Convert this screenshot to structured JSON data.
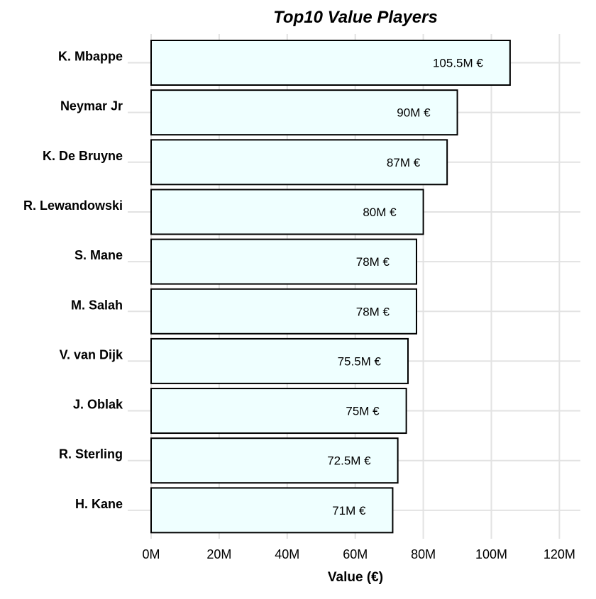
{
  "chart_data": {
    "type": "bar",
    "orientation": "horizontal",
    "title": "Top10 Value Players",
    "xlabel": "Value (€)",
    "ylabel": "",
    "categories": [
      "K. Mbappe",
      "Neymar Jr",
      "K. De Bruyne",
      "R. Lewandowski",
      "S. Mane",
      "M. Salah",
      "V. van Dijk",
      "J. Oblak",
      "R. Sterling",
      "H. Kane"
    ],
    "values": [
      105.5,
      90,
      87,
      80,
      78,
      78,
      75.5,
      75,
      72.5,
      71
    ],
    "value_unit": "M €",
    "data_labels": [
      "105.5M €",
      "90M €",
      "87M €",
      "80M €",
      "78M €",
      "78M €",
      "75.5M €",
      "75M €",
      "72.5M €",
      "71M €"
    ],
    "xlim": [
      0,
      125
    ],
    "x_ticks": [
      0,
      20,
      40,
      60,
      80,
      100,
      120
    ],
    "x_tick_labels": [
      "0M",
      "20M",
      "40M",
      "60M",
      "80M",
      "100M",
      "120M"
    ],
    "grid": true,
    "legend": "none",
    "colors": {
      "bar_fill": "#efffff",
      "bar_stroke": "#000000",
      "grid": "#e2e2e2"
    }
  }
}
